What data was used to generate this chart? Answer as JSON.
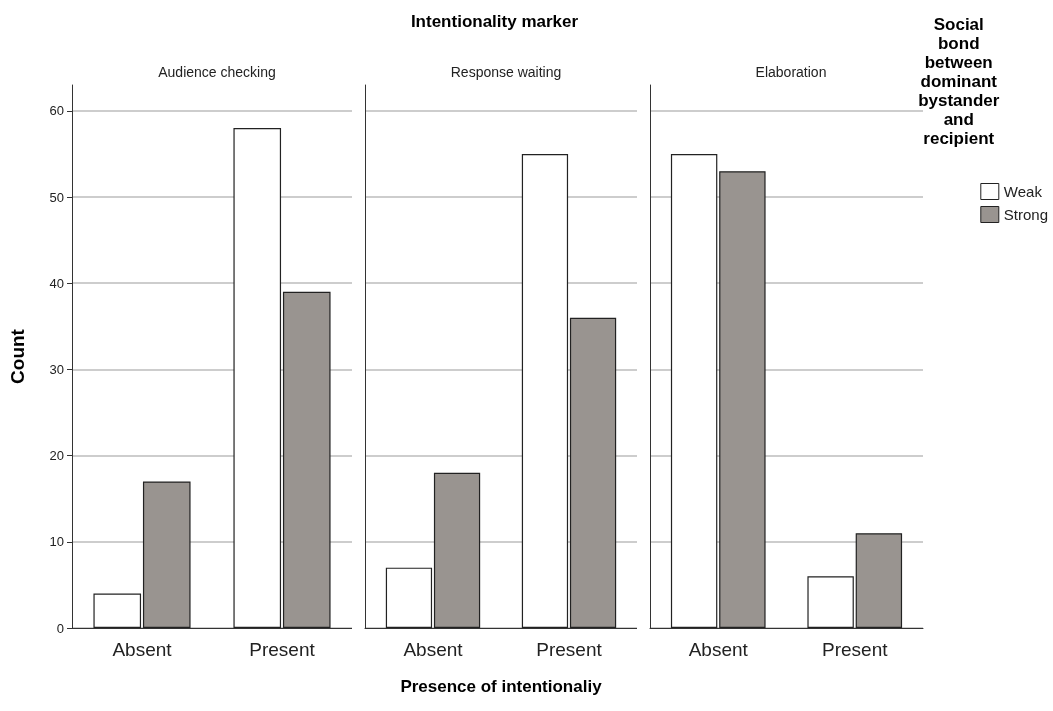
{
  "chart_data": [
    {
      "type": "bar",
      "subtitle": "Audience checking",
      "ylabel": "Count",
      "categories": [
        "Absent",
        "Present"
      ],
      "series": [
        {
          "color": "#ffffff",
          "values": [
            4,
            58
          ]
        },
        {
          "color": "#999490",
          "values": [
            17,
            39
          ]
        }
      ],
      "ylim": [
        0,
        63
      ],
      "yticks": [
        0,
        10,
        20,
        30,
        40,
        50,
        60
      ],
      "grid": "y"
    },
    {
      "type": "bar",
      "title": "Intentionality marker",
      "subtitle": "Response waiting",
      "xlabel": "Presence of intentionaliy",
      "categories": [
        "Absent",
        "Present"
      ],
      "series": [
        {
          "color": "#ffffff",
          "values": [
            7,
            55
          ]
        },
        {
          "color": "#999490",
          "values": [
            18,
            36
          ]
        }
      ],
      "ylim": [
        0,
        63
      ],
      "yticks": [
        0,
        10,
        20,
        30,
        40,
        50,
        60
      ],
      "grid": "y",
      "tick_labels": "x"
    },
    {
      "type": "bar",
      "subtitle": "Elaboration",
      "legend_title": "Social\nbond\nbetween\ndominant\nbystander\nand\nrecipient",
      "legend": "right",
      "categories": [
        "Absent",
        "Present"
      ],
      "series": [
        {
          "name": "Weak",
          "color": "#ffffff",
          "values": [
            55,
            6
          ]
        },
        {
          "name": "Strong",
          "color": "#999490",
          "values": [
            53,
            11
          ]
        }
      ],
      "ylim": [
        0,
        63
      ],
      "yticks": [
        0,
        10,
        20,
        30,
        40,
        50,
        60
      ],
      "grid": "y",
      "tick_labels": "x"
    }
  ]
}
